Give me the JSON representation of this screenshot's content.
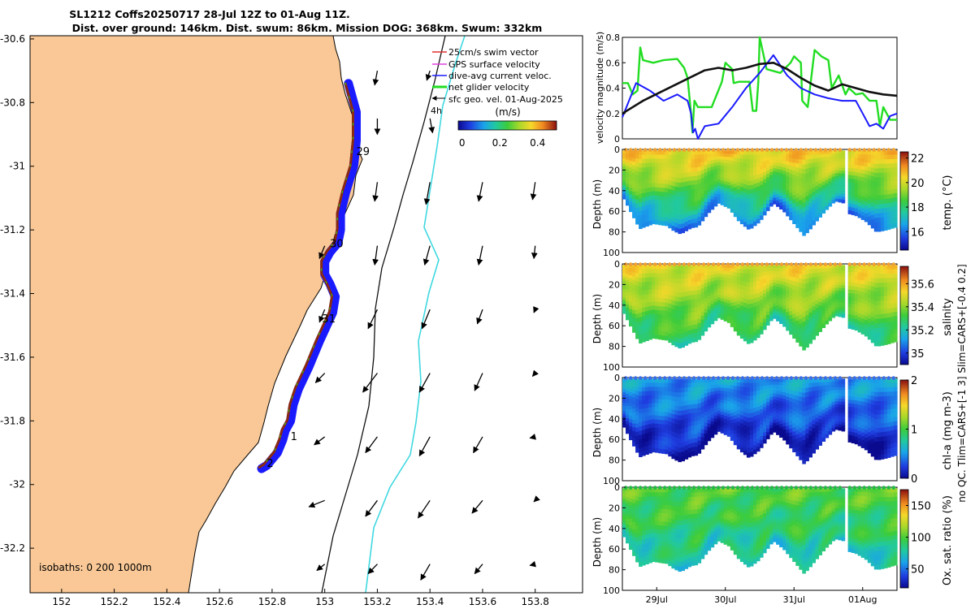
{
  "title": {
    "line1": "SL1212 Coffs20250717 28-Jul 12Z to 01-Aug 11Z.",
    "line2": "Dist. over ground: 146km. Dist. swum: 86km. Mission DOG: 368km. Swum: 332km"
  },
  "colors": {
    "land": "#f9c896",
    "track_blue": "#1a1aff",
    "net_green": "#22dd22",
    "ssh_contour": "#40d8e0",
    "black_line": "#111111"
  },
  "chart_data": [
    {
      "name": "map",
      "type": "scatter",
      "xlim": [
        151.88,
        153.98
      ],
      "ylim": [
        -32.34,
        -30.59
      ],
      "xticks": [
        "152",
        "152.2",
        "152.4",
        "152.6",
        "152.8",
        "153",
        "153.2",
        "153.4",
        "153.6",
        "153.8"
      ],
      "xtick_values": [
        152,
        152.2,
        152.4,
        152.6,
        152.8,
        153,
        153.2,
        153.4,
        153.6,
        153.8
      ],
      "yticks": [
        "-30.6",
        "-30.8",
        "-31",
        "-31.2",
        "-31.4",
        "-31.6",
        "-31.8",
        "-32",
        "-32.2"
      ],
      "ytick_values": [
        -30.6,
        -30.8,
        -31,
        -31.2,
        -31.4,
        -31.6,
        -31.8,
        -32,
        -32.2
      ],
      "isobath_label": "isobaths: 0   200  1000m",
      "legend": [
        {
          "label": "25cm/s swim vector",
          "color": "#e03030"
        },
        {
          "label": "GPS surface velocity",
          "color": "#e040e0"
        },
        {
          "label": "dive-avg current veloc.",
          "color": "#1a1aff"
        },
        {
          "label": "net glider velocity",
          "color": "#22dd22"
        },
        {
          "label": "sfc geo. vel. 01-Aug-2025",
          "color": "#000000"
        }
      ],
      "colorbar": {
        "title": "(m/s)",
        "ticks": [
          "0",
          "0.2",
          "0.4"
        ],
        "tick_values": [
          0,
          0.2,
          0.4
        ],
        "range": [
          -0.02,
          0.5
        ]
      },
      "contour_label": "4h",
      "day_labels": [
        {
          "text": "29",
          "lon": 153.12,
          "lat": -30.965
        },
        {
          "text": "30",
          "lon": 153.02,
          "lat": -31.255
        },
        {
          "text": "31",
          "lon": 152.99,
          "lat": -31.49
        },
        {
          "text": "1",
          "lon": 152.87,
          "lat": -31.86
        },
        {
          "text": "2",
          "lon": 152.78,
          "lat": -31.945
        }
      ],
      "track_lon": [
        153.09,
        153.12,
        153.12,
        153.11,
        153.08,
        153.06,
        153.06,
        153.05,
        153.02,
        153.0,
        153.0,
        153.02,
        153.04,
        153.03,
        152.98,
        152.94,
        152.9,
        152.88,
        152.87,
        152.85,
        152.84,
        152.82,
        152.78,
        152.76
      ],
      "track_lat": [
        -30.74,
        -30.83,
        -30.92,
        -31.0,
        -31.08,
        -31.15,
        -31.2,
        -31.24,
        -31.27,
        -31.3,
        -31.34,
        -31.37,
        -31.41,
        -31.46,
        -31.55,
        -31.63,
        -31.7,
        -31.75,
        -31.8,
        -31.83,
        -31.86,
        -31.9,
        -31.94,
        -31.95
      ],
      "vectors": {
        "lons": [
          153.0,
          153.2,
          153.4,
          153.6,
          153.8
        ],
        "lats": [
          -30.7,
          -30.85,
          -31.05,
          -31.25,
          -31.45,
          -31.65,
          -31.85,
          -32.05,
          -32.25
        ],
        "dx": [
          [
            0,
            -0.01,
            -0.012,
            0,
            0
          ],
          [
            0,
            0.0,
            0.01,
            0,
            0
          ],
          [
            0,
            -0.01,
            -0.015,
            -0.015,
            -0.01
          ],
          [
            -0.02,
            -0.01,
            -0.02,
            -0.015,
            -0.005
          ],
          [
            -0.02,
            -0.035,
            -0.03,
            -0.02,
            -0.005
          ],
          [
            -0.035,
            -0.055,
            -0.04,
            -0.03,
            -0.01
          ],
          [
            -0.04,
            -0.045,
            -0.04,
            -0.035,
            -0.02
          ],
          [
            -0.06,
            -0.045,
            -0.045,
            -0.04,
            -0.005
          ],
          [
            -0.03,
            -0.035,
            -0.035,
            -0.03,
            -0.02
          ]
        ],
        "dy": [
          [
            0,
            -0.045,
            -0.03,
            0,
            0
          ],
          [
            0,
            -0.05,
            -0.045,
            0,
            0
          ],
          [
            0,
            -0.06,
            -0.07,
            -0.06,
            -0.055
          ],
          [
            -0.04,
            -0.06,
            -0.06,
            -0.06,
            -0.04
          ],
          [
            -0.04,
            -0.06,
            -0.06,
            -0.045,
            -0.01
          ],
          [
            -0.03,
            -0.06,
            -0.06,
            -0.055,
            -0.01
          ],
          [
            -0.025,
            -0.05,
            -0.06,
            -0.05,
            -0.004
          ],
          [
            -0.02,
            -0.05,
            -0.055,
            -0.04,
            -0.004
          ],
          [
            -0.02,
            -0.03,
            -0.05,
            -0.03,
            -0.004
          ]
        ]
      }
    },
    {
      "name": "velocity",
      "type": "line",
      "ylabel": "velocity magnitude (m/s)",
      "ylim": [
        0,
        0.8
      ],
      "yticks": [
        "0",
        "0.2",
        "0.4",
        "0.6",
        "0.8"
      ],
      "ytick_values": [
        0,
        0.2,
        0.4,
        0.6,
        0.8
      ],
      "xlim": [
        0,
        4
      ],
      "series": [
        {
          "name": "net glider velocity",
          "color": "#22dd22",
          "x": [
            0,
            0.08,
            0.15,
            0.22,
            0.26,
            0.3,
            0.45,
            0.6,
            0.8,
            0.9,
            0.95,
            1.0,
            1.02,
            1.05,
            1.1,
            1.3,
            1.45,
            1.5,
            1.6,
            1.62,
            1.7,
            1.85,
            1.9,
            1.95,
            1.98,
            2.0,
            2.1,
            2.3,
            2.45,
            2.5,
            2.6,
            2.62,
            2.7,
            2.8,
            2.9,
            3.0,
            3.05,
            3.15,
            3.25,
            3.3,
            3.4,
            3.5,
            3.6,
            3.7,
            3.75,
            3.8,
            3.9,
            4.0
          ],
          "y": [
            0.44,
            0.44,
            0.35,
            0.38,
            0.72,
            0.62,
            0.6,
            0.62,
            0.63,
            0.56,
            0.48,
            0.2,
            0.05,
            0.3,
            0.25,
            0.25,
            0.45,
            0.6,
            0.55,
            0.44,
            0.45,
            0.45,
            0.22,
            0.22,
            0.45,
            0.8,
            0.55,
            0.52,
            0.6,
            0.65,
            0.6,
            0.3,
            0.25,
            0.7,
            0.65,
            0.62,
            0.4,
            0.5,
            0.35,
            0.4,
            0.35,
            0.36,
            0.3,
            0.3,
            0.1,
            0.25,
            0.15,
            0.15
          ]
        },
        {
          "name": "dive-avg current",
          "color": "#1a1aff",
          "x": [
            0,
            0.2,
            0.4,
            0.6,
            0.8,
            0.95,
            1.0,
            1.03,
            1.06,
            1.1,
            1.2,
            1.4,
            1.6,
            1.8,
            2.0,
            2.2,
            2.4,
            2.6,
            2.8,
            3.0,
            3.2,
            3.4,
            3.5,
            3.6,
            3.7,
            3.8,
            3.9,
            4.0
          ],
          "y": [
            0.17,
            0.44,
            0.38,
            0.3,
            0.35,
            0.3,
            0.2,
            0.05,
            0.08,
            0.0,
            0.1,
            0.12,
            0.25,
            0.4,
            0.52,
            0.66,
            0.5,
            0.4,
            0.35,
            0.32,
            0.3,
            0.3,
            0.2,
            0.1,
            0.12,
            0.08,
            0.18,
            0.2
          ]
        },
        {
          "name": "surface geostrophic",
          "color": "#111111",
          "x": [
            0,
            0.3,
            0.6,
            0.9,
            1.2,
            1.4,
            1.6,
            1.8,
            2.0,
            2.2,
            2.4,
            2.6,
            2.8,
            3.0,
            3.2,
            3.4,
            3.6,
            3.8,
            4.0
          ],
          "y": [
            0.2,
            0.3,
            0.38,
            0.46,
            0.54,
            0.56,
            0.54,
            0.56,
            0.59,
            0.6,
            0.55,
            0.48,
            0.42,
            0.38,
            0.43,
            0.4,
            0.37,
            0.35,
            0.34
          ]
        }
      ]
    },
    {
      "name": "sections",
      "type": "heatmap",
      "ylim": [
        0,
        100
      ],
      "yticks": [
        "0",
        "20",
        "40",
        "60",
        "80",
        "100"
      ],
      "ytick_values": [
        0,
        20,
        40,
        60,
        80,
        100
      ],
      "xticks": [
        "29Jul",
        "30Jul",
        "31Jul",
        "01Aug"
      ],
      "xtick_values": [
        0.5,
        1.5,
        2.5,
        3.5
      ],
      "xlim": [
        0,
        4
      ],
      "gap": [
        3.23,
        3.28
      ],
      "bottom_depth_x": [
        0,
        0.25,
        0.45,
        0.65,
        0.75,
        0.85,
        1.0,
        1.1,
        1.25,
        1.4,
        1.55,
        1.7,
        1.85,
        2.0,
        2.2,
        2.35,
        2.5,
        2.65,
        2.8,
        2.95,
        3.1,
        3.23,
        3.28,
        3.4,
        3.55,
        3.7,
        3.85,
        4.0
      ],
      "bottom_depth_y": [
        45,
        77,
        72,
        74,
        79,
        82,
        76,
        75,
        62,
        52,
        57,
        70,
        78,
        70,
        52,
        60,
        72,
        84,
        72,
        60,
        50,
        52,
        62,
        64,
        70,
        80,
        78,
        75
      ],
      "panels": [
        {
          "name": "temperature",
          "label": "temp. (°C)",
          "ylabel": "Depth (m)",
          "cb_ticks": [
            "16",
            "18",
            "20",
            "22"
          ],
          "cb_tick_values": [
            16,
            18,
            20,
            22
          ],
          "cb_range": [
            14.5,
            22.5
          ],
          "surface_value": 20.5,
          "deep_value": 16.0,
          "dot_color": "#f0a030",
          "dot_colors_note": "surface value dots"
        },
        {
          "name": "salinity",
          "label": "salinity",
          "ylabel": "Depth (m)",
          "cb_ticks": [
            "35",
            "35.2",
            "35.4",
            "35.6"
          ],
          "cb_tick_values": [
            35,
            35.2,
            35.4,
            35.6
          ],
          "cb_range": [
            34.9,
            35.75
          ],
          "surface_value": 35.5,
          "deep_value": 35.25,
          "dot_color": "#f0a030"
        },
        {
          "name": "chlorophyll",
          "label": "chl-a (mg m-3)",
          "ylabel": "Depth (m)",
          "cb_ticks": [
            "0",
            "1",
            "2"
          ],
          "cb_tick_values": [
            0,
            1,
            2
          ],
          "cb_range": [
            0,
            2
          ],
          "surface_value": 0.5,
          "deep_value": 0.05,
          "dot_color": "#3a6ee8"
        },
        {
          "name": "oxygen",
          "label": "Ox. sat. ratio (%)",
          "ylabel": "Depth (m)",
          "cb_ticks": [
            "50",
            "100",
            "150"
          ],
          "cb_tick_values": [
            50,
            100,
            150
          ],
          "cb_range": [
            20,
            175
          ],
          "surface_value": 100,
          "deep_value": 75,
          "dot_color": "#22bb44"
        }
      ],
      "side_note": "no QC. Tlim=CARS+[-1 3] Slim=CARS+[-0.4 0.2]"
    }
  ]
}
